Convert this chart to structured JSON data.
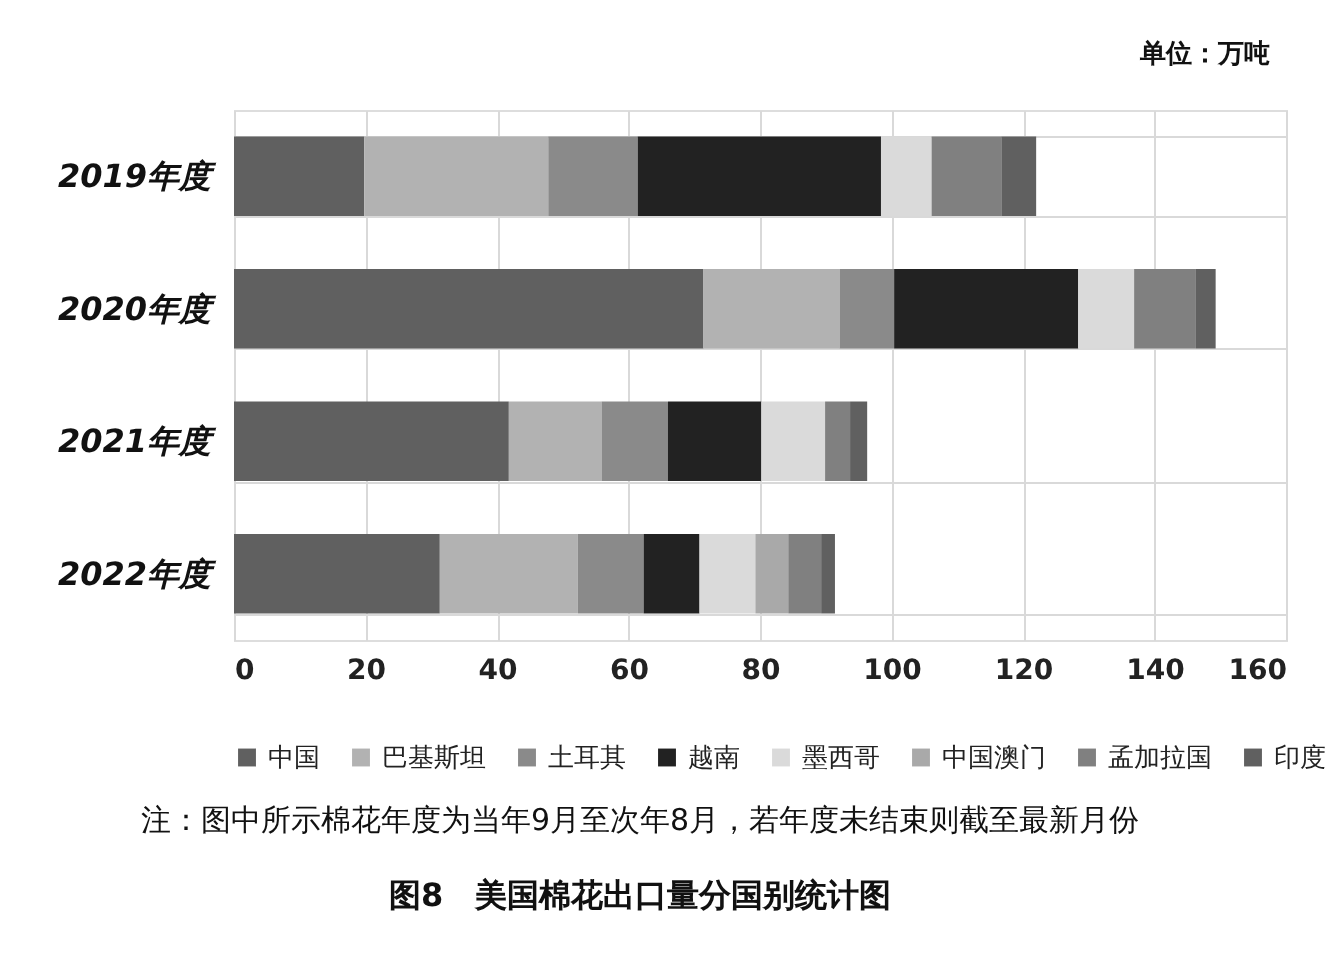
{
  "chart_data": {
    "type": "bar",
    "orientation": "horizontal",
    "stacked": true,
    "title": "图8　美国棉花出口量分国别统计图",
    "categories": [
      "2019年度",
      "2020年度",
      "2021年度",
      "2022年度"
    ],
    "series": [
      {
        "name": "中国",
        "color": "#606060",
        "values": [
          19.8,
          71.4,
          41.8,
          31.3
        ]
      },
      {
        "name": "巴基斯坦",
        "color": "#b2b2b2",
        "values": [
          28.0,
          20.7,
          14.1,
          21.0
        ]
      },
      {
        "name": "土耳其",
        "color": "#8a8a8a",
        "values": [
          13.6,
          8.3,
          10.1,
          10.0
        ]
      },
      {
        "name": "越南",
        "color": "#222222",
        "values": [
          37.0,
          28.0,
          14.2,
          8.5
        ]
      },
      {
        "name": "墨西哥",
        "color": "#dadada",
        "values": [
          7.7,
          8.5,
          9.7,
          8.5
        ]
      },
      {
        "name": "中国澳门",
        "color": "#a9a9a9",
        "values": [
          0,
          0,
          0,
          5.0
        ]
      },
      {
        "name": "孟加拉国",
        "color": "#808080",
        "values": [
          10.6,
          9.4,
          3.8,
          5.0
        ]
      },
      {
        "name": "印度",
        "color": "#606060",
        "values": [
          5.3,
          3.0,
          2.6,
          2.1
        ]
      }
    ],
    "xlim": [
      0,
      160
    ],
    "xticks": [
      0,
      20,
      40,
      60,
      80,
      100,
      120,
      140,
      160
    ],
    "grid": true,
    "legend": "bottom",
    "annotations": [
      "单位：万吨",
      "注：图中所示棉花年度为当年9月至次年8月，若年度未结束则截至最新月份"
    ]
  }
}
